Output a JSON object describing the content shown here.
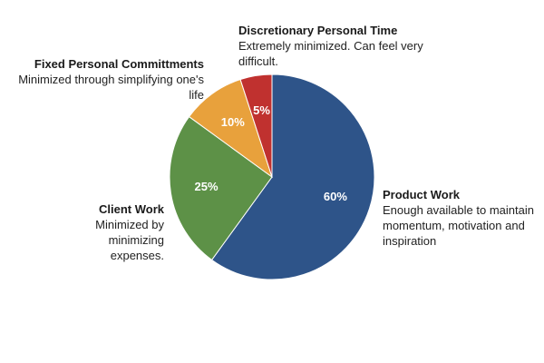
{
  "chart_data": {
    "type": "pie",
    "slices": [
      {
        "name": "Product Work",
        "value": 60,
        "label": "60%",
        "color": "#2e5489",
        "description": "Enough available to maintain momentum, motivation and inspiration"
      },
      {
        "name": "Client Work",
        "value": 25,
        "label": "25%",
        "color": "#5d9147",
        "description": "Minimized by minimizing expenses."
      },
      {
        "name": "Fixed Personal Committments",
        "value": 10,
        "label": "10%",
        "color": "#e8a13c",
        "description": "Minimized through simplifying one's life"
      },
      {
        "name": "Discretionary Personal Time",
        "value": 5,
        "label": "5%",
        "color": "#c0312f",
        "description": "Extremely minimized. Can feel very difficult."
      }
    ],
    "start": "12 o'clock",
    "direction": "clockwise",
    "legend": "none",
    "callouts": "around-pie"
  }
}
